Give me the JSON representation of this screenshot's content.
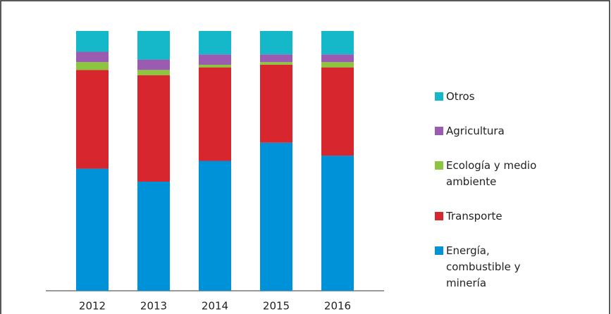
{
  "chart_data": {
    "type": "bar",
    "stacked": true,
    "categories": [
      "2012",
      "2013",
      "2014",
      "2015",
      "2016"
    ],
    "series": [
      {
        "name": "Energía, combustible y minería",
        "color": "#0092d8",
        "values": [
          47,
          42,
          50,
          57,
          52
        ]
      },
      {
        "name": "Transporte",
        "color": "#d7262e",
        "values": [
          38,
          41,
          36,
          30,
          34
        ]
      },
      {
        "name": "Ecología y medio ambiente",
        "color": "#8cc63f",
        "values": [
          3,
          2,
          1,
          1,
          2
        ]
      },
      {
        "name": "Agricultura",
        "color": "#9a5bb0",
        "values": [
          4,
          4,
          4,
          3,
          3
        ]
      },
      {
        "name": "Otros",
        "color": "#14b8c8",
        "values": [
          8,
          11,
          9,
          9,
          9
        ]
      }
    ],
    "legend": "right"
  }
}
